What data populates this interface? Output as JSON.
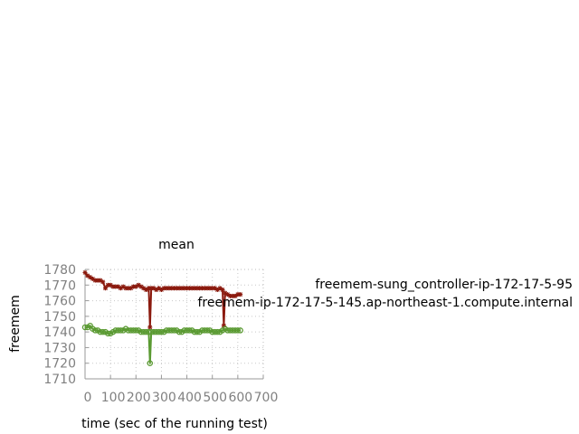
{
  "chart_data": {
    "type": "line",
    "title": "mean",
    "xlabel": "time (sec of the running test)",
    "ylabel": "freemem",
    "xlim": [
      0,
      700
    ],
    "ylim": [
      1710,
      1780
    ],
    "xticks": [
      "0",
      "100",
      "200",
      "300",
      "400",
      "500",
      "600",
      "700"
    ],
    "yticks": [
      "1710",
      "1720",
      "1730",
      "1740",
      "1750",
      "1760",
      "1770",
      "1780"
    ],
    "grid": true,
    "legend_position": "right",
    "legend_entries": [
      "freemem-sung_controller-ip-172-17-5-95",
      "freemem-ip-172-17-5-145.ap-northeast-1.compute.internal"
    ],
    "series": [
      {
        "name": "freemem-sung_controller-ip-172-17-5-95",
        "color": "#8b1a0e",
        "marker": "star",
        "x": [
          0,
          10,
          20,
          30,
          40,
          50,
          60,
          70,
          80,
          90,
          100,
          110,
          120,
          130,
          140,
          150,
          160,
          170,
          180,
          190,
          200,
          210,
          220,
          230,
          240,
          250,
          255,
          260,
          270,
          280,
          290,
          300,
          310,
          320,
          330,
          340,
          350,
          360,
          370,
          380,
          390,
          400,
          410,
          420,
          430,
          440,
          450,
          460,
          470,
          480,
          490,
          500,
          510,
          520,
          530,
          540,
          545,
          550,
          560,
          570,
          580,
          590,
          600,
          610
        ],
        "y": [
          1778,
          1776,
          1775,
          1774,
          1773,
          1773,
          1773,
          1772,
          1768,
          1770,
          1770,
          1769,
          1769,
          1769,
          1768,
          1769,
          1768,
          1768,
          1768,
          1769,
          1769,
          1770,
          1769,
          1768,
          1767,
          1768,
          1743,
          1768,
          1768,
          1767,
          1768,
          1767,
          1768,
          1768,
          1768,
          1768,
          1768,
          1768,
          1768,
          1768,
          1768,
          1768,
          1768,
          1768,
          1768,
          1768,
          1768,
          1768,
          1768,
          1768,
          1768,
          1768,
          1768,
          1767,
          1768,
          1767,
          1744,
          1765,
          1764,
          1763,
          1763,
          1763,
          1764,
          1764
        ]
      },
      {
        "name": "freemem-ip-172-17-5-145.ap-northeast-1.compute.internal",
        "color": "#5a9a32",
        "marker": "circle",
        "x": [
          0,
          10,
          20,
          30,
          40,
          50,
          60,
          70,
          80,
          90,
          100,
          110,
          120,
          130,
          140,
          150,
          160,
          170,
          180,
          190,
          200,
          210,
          220,
          230,
          240,
          250,
          255,
          260,
          270,
          280,
          290,
          300,
          310,
          320,
          330,
          340,
          350,
          360,
          370,
          380,
          390,
          400,
          410,
          420,
          430,
          440,
          450,
          460,
          470,
          480,
          490,
          500,
          510,
          520,
          530,
          540,
          550,
          560,
          570,
          580,
          590,
          600,
          610
        ],
        "y": [
          1743,
          1743,
          1744,
          1742,
          1741,
          1741,
          1740,
          1740,
          1740,
          1739,
          1739,
          1740,
          1741,
          1741,
          1741,
          1741,
          1742,
          1741,
          1741,
          1741,
          1741,
          1741,
          1740,
          1740,
          1740,
          1740,
          1720,
          1740,
          1740,
          1740,
          1740,
          1740,
          1740,
          1741,
          1741,
          1741,
          1741,
          1741,
          1740,
          1740,
          1741,
          1741,
          1741,
          1741,
          1740,
          1740,
          1740,
          1741,
          1741,
          1741,
          1741,
          1740,
          1740,
          1740,
          1740,
          1741,
          1742,
          1741,
          1741,
          1741,
          1741,
          1741,
          1741
        ]
      }
    ]
  }
}
